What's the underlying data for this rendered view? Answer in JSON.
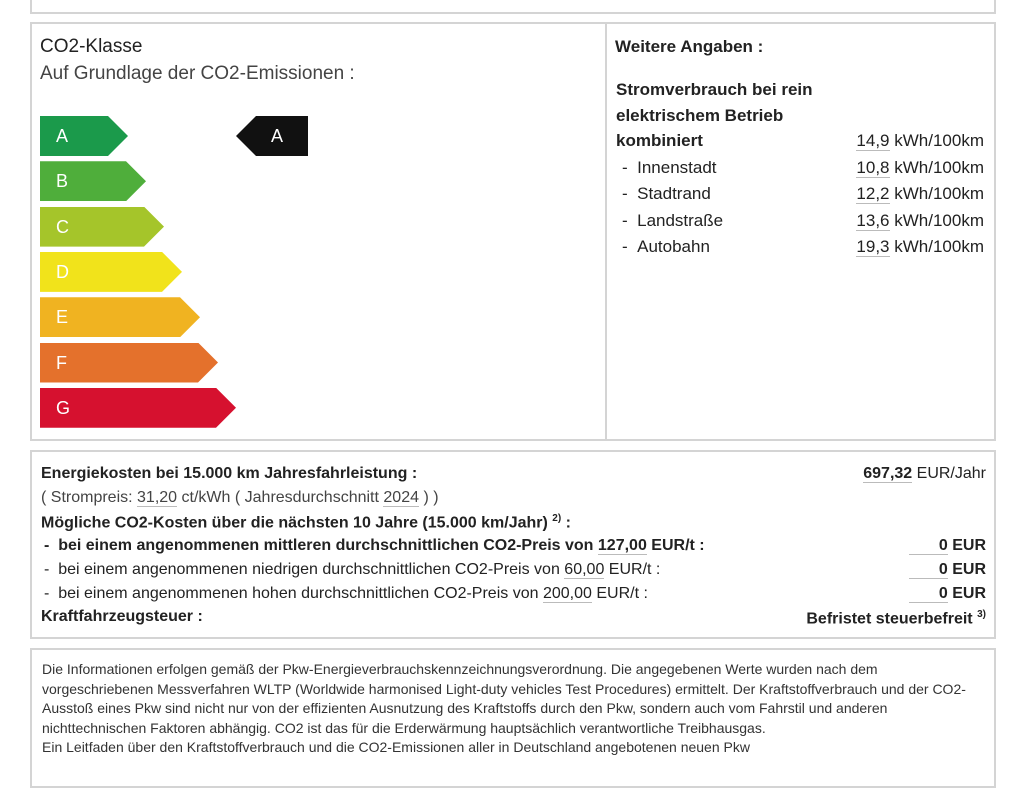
{
  "co2": {
    "title": "CO2-Klasse",
    "subtitle": "Auf Grundlage der CO2-Emissionen",
    "classes": [
      {
        "label": "A",
        "color": "#1b9a4b"
      },
      {
        "label": "B",
        "color": "#4fae3b"
      },
      {
        "label": "C",
        "color": "#a5c52a"
      },
      {
        "label": "D",
        "color": "#f1e31b"
      },
      {
        "label": "E",
        "color": "#f0b321"
      },
      {
        "label": "F",
        "color": "#e4712c"
      },
      {
        "label": "G",
        "color": "#d6112f"
      }
    ],
    "current_class": "A"
  },
  "weitere": {
    "title": "Weitere Angaben",
    "heading1": "Stromverbrauch bei rein",
    "heading2": "elektrischem Betrieb",
    "rows": [
      {
        "label": "kombiniert",
        "value": "14,9",
        "unit": "kWh/100km"
      },
      {
        "label": "Innenstadt",
        "value": "10,8",
        "unit": "kWh/100km"
      },
      {
        "label": "Stadtrand",
        "value": "12,2",
        "unit": "kWh/100km"
      },
      {
        "label": "Landstraße",
        "value": "13,6",
        "unit": "kWh/100km"
      },
      {
        "label": "Autobahn",
        "value": "19,3",
        "unit": "kWh/100km"
      }
    ]
  },
  "costs": {
    "energy_label": "Energiekosten bei 15.000 km Jahresfahrleistung",
    "energy_value": "697,32",
    "energy_unit": "EUR/Jahr",
    "price_prefix": "( Strompreis:",
    "price_value": "31,20",
    "price_unit": "ct/kWh ( Jahresdurchschnitt",
    "price_year": "2024",
    "price_suffix": ") )",
    "co2_label": "Mögliche CO2-Kosten über die nächsten 10 Jahre (15.000 km/Jahr)",
    "co2_sup": "2)",
    "scenarios": [
      {
        "text": "bei einem angenommenen mittleren durchschnittlichen CO2-Preis von",
        "price": "127,00",
        "unit": "EUR/t",
        "value": "0",
        "currency": "EUR"
      },
      {
        "text": "bei einem angenommenen niedrigen durchschnittlichen CO2-Preis von",
        "price": "60,00",
        "unit": "EUR/t",
        "value": "0",
        "currency": "EUR"
      },
      {
        "text": "bei einem angenommenen hohen durchschnittlichen CO2-Preis von",
        "price": "200,00",
        "unit": "EUR/t",
        "value": "0",
        "currency": "EUR"
      }
    ],
    "tax_label": "Kraftfahrzeugsteuer",
    "tax_value": "Befristet steuerbefreit",
    "tax_sup": "3)"
  },
  "footer": {
    "text": "Die Informationen erfolgen gemäß der Pkw-Energieverbrauchskennzeichnungsverordnung. Die angegebenen Werte wurden nach dem vorgeschriebenen Messverfahren WLTP (Worldwide harmonised Light-duty vehicles Test Procedures) ermittelt. Der Kraftstoffverbrauch und der CO2-Ausstoß eines Pkw sind nicht nur von der effizienten Ausnutzung des Kraftstoffs durch den Pkw, sondern auch vom Fahrstil und anderen nichttechnischen Faktoren abhängig. CO2 ist das für die Erderwärmung hauptsächlich verantwortliche Treibhausgas.",
    "text2": "Ein Leitfaden über den Kraftstoffverbrauch und die CO2-Emissionen aller in Deutschland angebotenen neuen Pkw"
  }
}
